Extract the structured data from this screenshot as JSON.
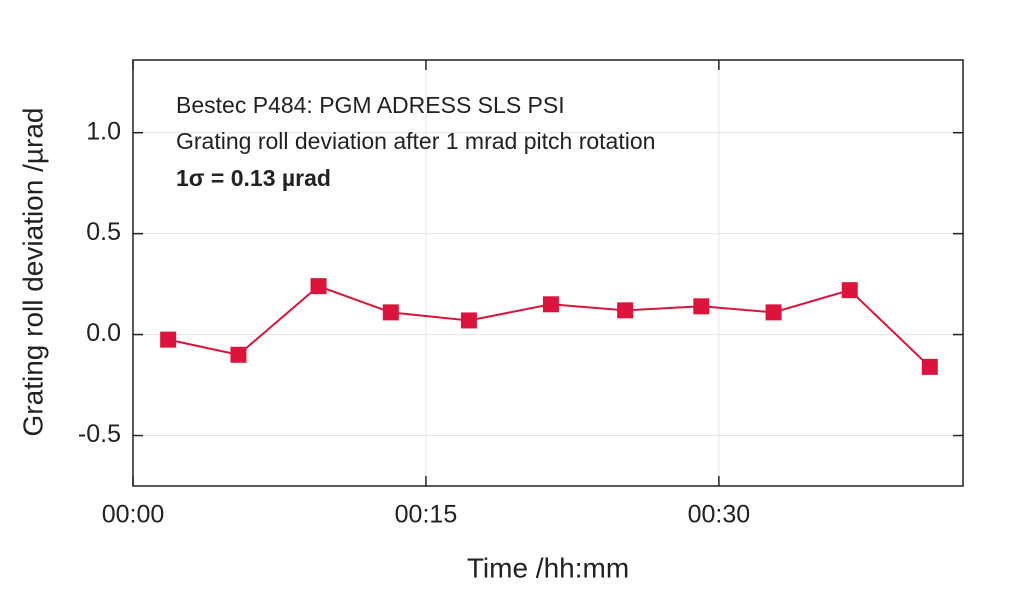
{
  "chart_data": {
    "type": "line",
    "annotations": [
      "Bestec P484: PGM ADRESS SLS PSI",
      "Grating roll deviation after 1 mrad pitch rotation",
      "1σ = 0.13 µrad"
    ],
    "x_label": "Time /hh:mm",
    "y_label": "Grating roll deviation /µrad",
    "x": [
      1.8,
      5.4,
      9.5,
      13.2,
      17.2,
      21.4,
      25.2,
      29.1,
      32.8,
      36.7,
      40.8
    ],
    "series": [
      {
        "color": "#dc143c",
        "values": [
          -0.025,
          -0.1,
          0.24,
          0.11,
          0.07,
          0.15,
          0.12,
          0.14,
          0.11,
          0.22,
          -0.16
        ]
      }
    ],
    "xlim": [
      0,
      42.5
    ],
    "xticks": [
      {
        "value": 0,
        "label": "00:00"
      },
      {
        "value": 15,
        "label": "00:15"
      },
      {
        "value": 30,
        "label": "00:30"
      }
    ],
    "ylim": [
      -0.75,
      1.36
    ],
    "yticks": [
      -0.5,
      {
        "value": 0,
        "label": "0.0"
      },
      0.5,
      {
        "value": 1,
        "label": "1.0"
      }
    ],
    "grid": true
  }
}
